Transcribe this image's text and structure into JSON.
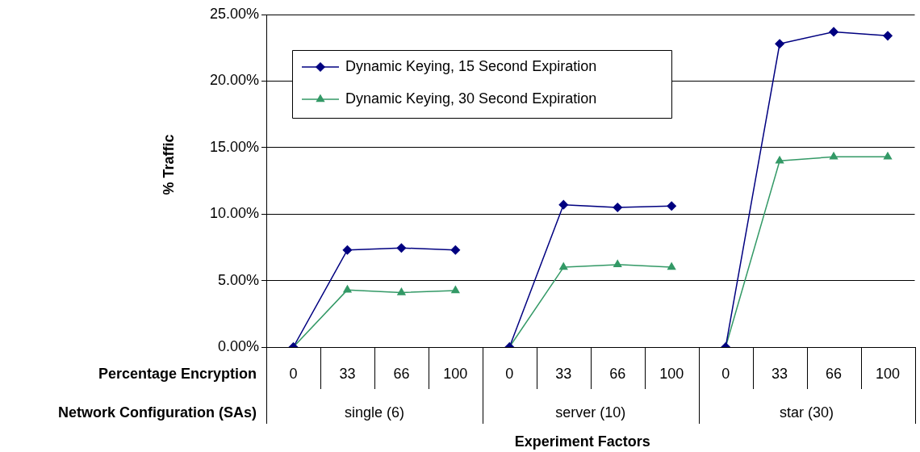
{
  "chart_data": {
    "type": "line",
    "xlabel": "Experiment Factors",
    "ylabel": "% Traffic",
    "categories": [
      "0",
      "33",
      "66",
      "100",
      "0",
      "33",
      "66",
      "100",
      "0",
      "33",
      "66",
      "100"
    ],
    "annotations": [
      "Percentage Encryption",
      "Network Configuration (SAs)",
      "single (6)",
      "server (10)",
      "star (30)"
    ],
    "series": [
      {
        "name": "Dynamic Keying, 15 Second Expiration",
        "color": "#000080",
        "marker": "diamond",
        "values": [
          0,
          7.3,
          7.45,
          7.3,
          0,
          10.7,
          10.5,
          10.6,
          0,
          22.8,
          23.7,
          23.4
        ]
      },
      {
        "name": "Dynamic Keying, 30 Second Expiration",
        "color": "#339966",
        "marker": "triangle",
        "values": [
          0,
          4.3,
          4.1,
          4.25,
          0,
          6.0,
          6.2,
          6.0,
          0,
          14.0,
          14.3,
          14.3
        ]
      }
    ],
    "ylim": [
      0,
      25
    ],
    "yticks": [
      {
        "value": 0,
        "label": "0.00%"
      },
      {
        "value": 5,
        "label": "5.00%"
      },
      {
        "value": 10,
        "label": "10.00%"
      },
      {
        "value": 15,
        "label": "15.00%"
      },
      {
        "value": 20,
        "label": "20.00%"
      },
      {
        "value": 25,
        "label": "25.00%"
      }
    ],
    "grid": "y",
    "legend": "top left",
    "line_style": "solid"
  }
}
